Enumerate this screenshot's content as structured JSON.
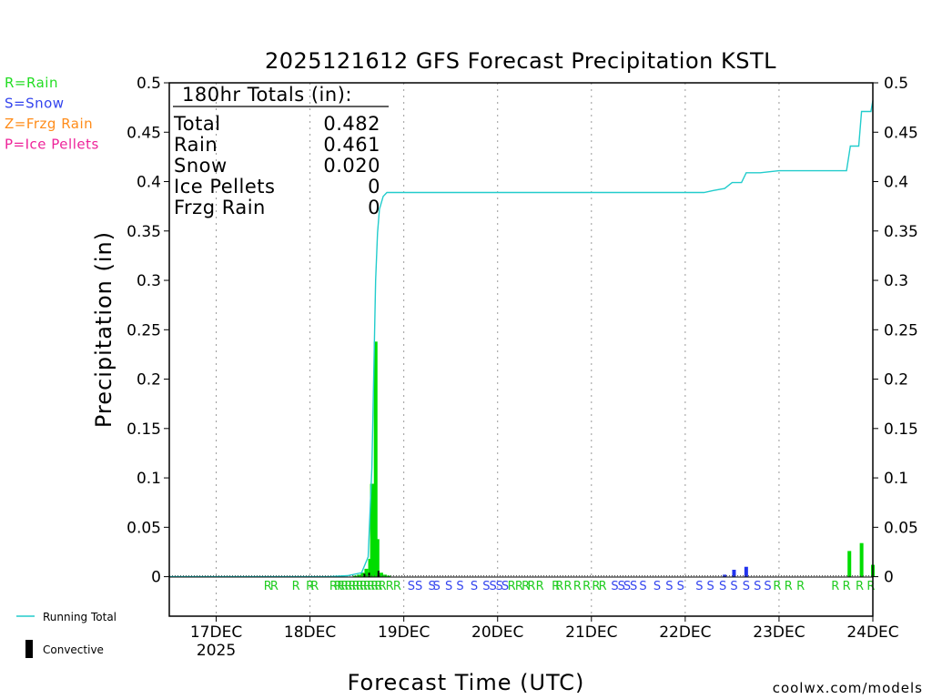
{
  "chart_data": {
    "type": "bar",
    "title": "2025121612 GFS Forecast Precipitation KSTL",
    "xlabel": "Forecast Time (UTC)",
    "ylabel": "Precipitation (in)",
    "ylim": [
      -0.04,
      0.5
    ],
    "xlim_days": [
      16.5,
      24.0
    ],
    "y_ticks": [
      "0.5",
      "0.45",
      "0.4",
      "0.35",
      "0.3",
      "0.25",
      "0.2",
      "0.15",
      "0.1",
      "0.05",
      "0"
    ],
    "x_ticks": [
      {
        "label": "17DEC",
        "sub": "2025",
        "day": 17.0
      },
      {
        "label": "18DEC",
        "sub": "",
        "day": 18.0
      },
      {
        "label": "19DEC",
        "sub": "",
        "day": 19.0
      },
      {
        "label": "20DEC",
        "sub": "",
        "day": 20.0
      },
      {
        "label": "21DEC",
        "sub": "",
        "day": 21.0
      },
      {
        "label": "22DEC",
        "sub": "",
        "day": 22.0
      },
      {
        "label": "23DEC",
        "sub": "",
        "day": 23.0
      },
      {
        "label": "24DEC",
        "sub": "",
        "day": 24.0
      }
    ],
    "type_legend": [
      {
        "text": "R=Rain",
        "color": "#22dd22"
      },
      {
        "text": "S=Snow",
        "color": "#3344ee"
      },
      {
        "text": "Z=Frzg Rain",
        "color": "#ff8c1a"
      },
      {
        "text": "P=Ice Pellets",
        "color": "#ee2299"
      }
    ],
    "totals_box": {
      "header": "180hr Totals (in):",
      "rows": [
        {
          "label": "Total",
          "value": "0.482"
        },
        {
          "label": "Rain",
          "value": "0.461"
        },
        {
          "label": "Snow",
          "value": "0.020"
        },
        {
          "label": "Ice Pellets",
          "value": "0"
        },
        {
          "label": "Frzg Rain",
          "value": "0"
        }
      ]
    },
    "series": [
      {
        "name": "Rain bars",
        "color": "#00dd00",
        "x": [
          18.48,
          18.52,
          18.56,
          18.6,
          18.64,
          18.66,
          18.68,
          18.7,
          18.72,
          18.76,
          18.8,
          18.84,
          23.75,
          23.88,
          24.0
        ],
        "values": [
          0.001,
          0.002,
          0.004,
          0.008,
          0.018,
          0.094,
          0.094,
          0.238,
          0.038,
          0.004,
          0.002,
          0.001,
          0.026,
          0.034,
          0.012
        ]
      },
      {
        "name": "Snow bars",
        "color": "#2233ee",
        "x": [
          22.42,
          22.52,
          22.65
        ],
        "values": [
          0.002,
          0.007,
          0.01
        ]
      },
      {
        "name": "Convective",
        "color": "#000000",
        "x": [
          18.58,
          18.63,
          18.73
        ],
        "values": [
          0.003,
          0.004,
          0.006
        ]
      },
      {
        "name": "Running Total",
        "color": "#22cccc",
        "x": [
          16.5,
          18.2,
          18.4,
          18.55,
          18.62,
          18.66,
          18.7,
          18.72,
          18.74,
          18.78,
          18.82,
          22.2,
          22.3,
          22.42,
          22.5,
          22.6,
          22.65,
          22.8,
          23.0,
          23.72,
          23.76,
          23.85,
          23.88,
          23.98,
          24.0
        ],
        "values": [
          0,
          0,
          0.001,
          0.004,
          0.02,
          0.11,
          0.3,
          0.348,
          0.372,
          0.385,
          0.389,
          0.389,
          0.391,
          0.393,
          0.399,
          0.399,
          0.409,
          0.409,
          0.411,
          0.411,
          0.436,
          0.436,
          0.471,
          0.471,
          0.482
        ]
      }
    ],
    "ptype_letters": [
      {
        "text": "R",
        "color": "#22cc22",
        "day": [
          17.55,
          17.62,
          17.85,
          18.0,
          18.05,
          18.25,
          18.3,
          18.33,
          18.37,
          18.41,
          18.45,
          18.49,
          18.53,
          18.57,
          18.61,
          18.65,
          18.69,
          18.73,
          18.77,
          18.85,
          18.93,
          20.15,
          20.23,
          20.3,
          20.36,
          20.45,
          20.62,
          20.66,
          20.75,
          20.85,
          20.95,
          21.05,
          21.12,
          22.98,
          23.1,
          23.23,
          23.6,
          23.72,
          23.86,
          23.98
        ]
      },
      {
        "text": "S",
        "color": "#3344ee",
        "day": [
          19.08,
          19.16,
          19.3,
          19.35,
          19.48,
          19.6,
          19.75,
          19.88,
          19.95,
          20.02,
          20.08,
          21.25,
          21.32,
          21.38,
          21.45,
          21.55,
          21.7,
          21.83,
          21.95,
          22.15,
          22.27,
          22.4,
          22.52,
          22.65,
          22.77,
          22.88
        ]
      }
    ],
    "legend": [
      {
        "label": "Running Total",
        "color": "#22cccc"
      },
      {
        "label": "Convective",
        "color": "#000000"
      }
    ],
    "credit": "coolwx.com/models",
    "credit_color": "#dd2222"
  }
}
